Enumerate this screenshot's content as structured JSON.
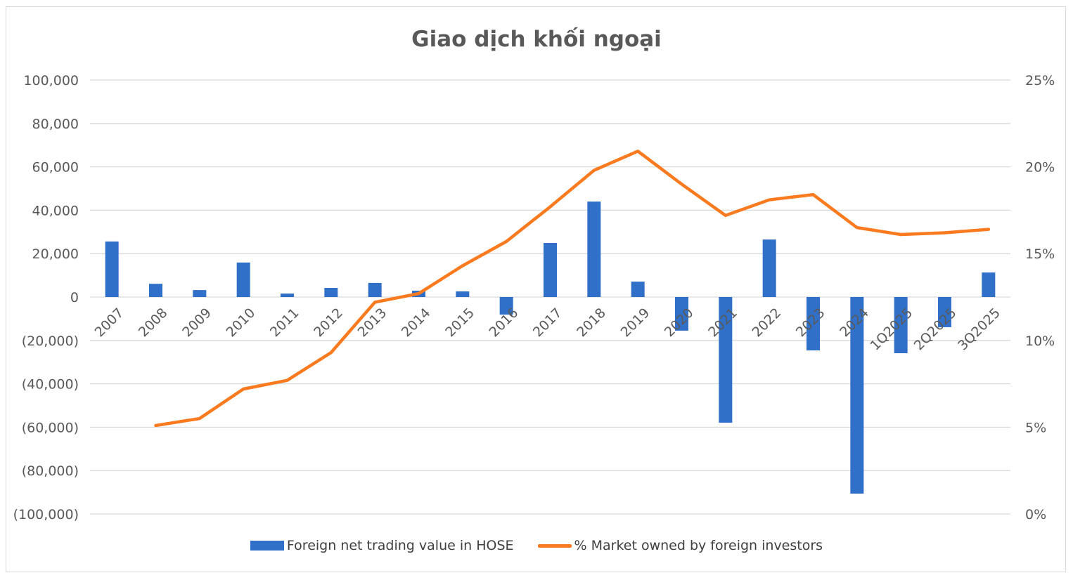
{
  "chart": {
    "title": "Giao dịch khối ngoại",
    "colors": {
      "bar": "#3070C8",
      "line": "#F97A1F",
      "grid": "#d9d9d9",
      "axis_text": "#595959"
    },
    "left_axis_ticks": [
      "100,000",
      "80,000",
      "60,000",
      "40,000",
      "20,000",
      "0",
      "(20,000)",
      "(40,000)",
      "(60,000)",
      "(80,000)",
      "(100,000)"
    ],
    "right_axis_ticks": [
      "25%",
      "20%",
      "15%",
      "10%",
      "5%",
      "0%"
    ],
    "legend": {
      "bar_label": "Foreign net trading value in HOSE",
      "line_label": "% Market owned by foreign investors"
    }
  },
  "chart_data": {
    "type": "bar",
    "title": "Giao dịch khối ngoại",
    "xlabel": "",
    "ylabel": "",
    "categories": [
      "2007",
      "2008",
      "2009",
      "2010",
      "2011",
      "2012",
      "2013",
      "2014",
      "2015",
      "2016",
      "2017",
      "2018",
      "2019",
      "2020",
      "2021",
      "2022",
      "2023",
      "2024",
      "1Q2025",
      "2Q2025",
      "3Q2025"
    ],
    "series": [
      {
        "name": "Foreign net trading value in HOSE",
        "type": "bar",
        "axis": "left",
        "values": [
          25600,
          6100,
          3200,
          15900,
          1600,
          4200,
          6500,
          2900,
          2600,
          -8100,
          24900,
          44000,
          7100,
          -15500,
          -57900,
          26500,
          -24600,
          -90600,
          -25900,
          -13900,
          11300
        ]
      },
      {
        "name": "% Market owned by foreign investors",
        "type": "line",
        "axis": "right",
        "values": [
          null,
          5.1,
          5.5,
          7.2,
          7.7,
          9.3,
          12.2,
          12.7,
          14.3,
          15.7,
          17.7,
          19.8,
          20.9,
          19.0,
          17.2,
          18.1,
          18.4,
          16.5,
          16.1,
          16.2,
          16.4
        ]
      }
    ],
    "ylim": [
      -100000,
      100000
    ],
    "y2lim": [
      0,
      25
    ],
    "y2_format": "percent",
    "grid": true,
    "legend_position": "bottom"
  }
}
